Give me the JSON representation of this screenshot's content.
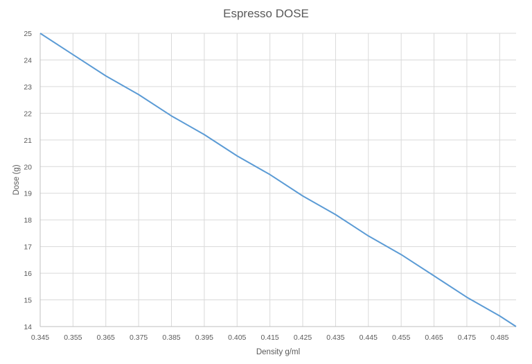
{
  "chart_data": {
    "type": "line",
    "title": "Espresso DOSE",
    "xlabel": "Density g/ml",
    "ylabel": "Dose (g)",
    "xlim": [
      0.345,
      0.49
    ],
    "ylim": [
      14,
      25
    ],
    "grid": true,
    "legend": null,
    "x_ticks": [
      "0.345",
      "0.355",
      "0.365",
      "0.375",
      "0.385",
      "0.395",
      "0.405",
      "0.415",
      "0.425",
      "0.435",
      "0.445",
      "0.455",
      "0.465",
      "0.475",
      "0.485"
    ],
    "y_ticks": [
      "14",
      "15",
      "16",
      "17",
      "18",
      "19",
      "20",
      "21",
      "22",
      "23",
      "24",
      "25"
    ],
    "series": [
      {
        "name": "Dose",
        "color": "#5B9BD5",
        "x": [
          0.345,
          0.355,
          0.365,
          0.375,
          0.385,
          0.395,
          0.405,
          0.415,
          0.425,
          0.435,
          0.445,
          0.455,
          0.465,
          0.475,
          0.485,
          0.49
        ],
        "y": [
          25.0,
          24.2,
          23.4,
          22.7,
          21.9,
          21.2,
          20.4,
          19.7,
          18.9,
          18.2,
          17.4,
          16.7,
          15.9,
          15.1,
          14.4,
          14.0
        ]
      }
    ]
  },
  "colors": {
    "line": "#5B9BD5",
    "grid": "#D9D9D9",
    "text": "#595959"
  }
}
